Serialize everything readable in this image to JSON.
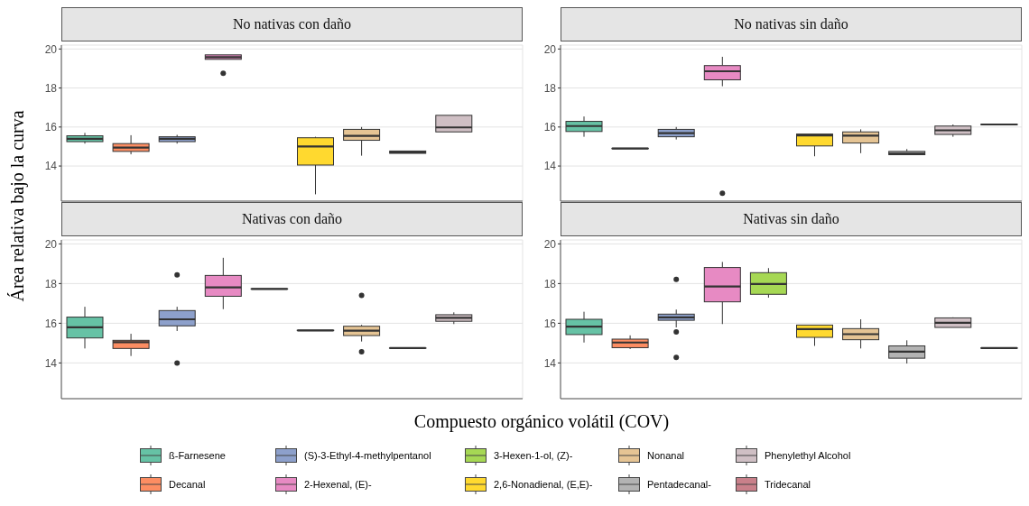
{
  "chart_data": [
    {
      "type": "box",
      "title": "No nativas con daño",
      "xlabel": "Compuesto orgánico volátil (COV)",
      "ylabel": "Área relativa bajo la curva",
      "legend": "bottom",
      "categories": [
        null,
        null,
        null,
        null,
        null,
        null,
        null,
        null,
        null,
        null
      ],
      "series": [
        {
          "name": "ß-Farnesene",
          "color": "#66c2a5",
          "boxes": [
            {
              "low": 15.15,
              "q1": 15.25,
              "median": 15.4,
              "q3": 15.55,
              "high": 15.7
            },
            null,
            null,
            null,
            null,
            null,
            null,
            null,
            null,
            null
          ]
        },
        {
          "name": "Decanal",
          "color": "#fc8d62",
          "boxes": [
            null,
            {
              "low": 14.6,
              "q1": 14.75,
              "median": 14.95,
              "q3": 15.15,
              "high": 15.58
            },
            null,
            null,
            null,
            null,
            null,
            null,
            null,
            null
          ]
        },
        {
          "name": "(S)-3-Ethyl-4-methylpentanol",
          "color": "#8da0cb",
          "boxes": [
            null,
            null,
            {
              "low": 15.15,
              "q1": 15.25,
              "median": 15.4,
              "q3": 15.5,
              "high": 15.6
            },
            null,
            null,
            null,
            null,
            null,
            null,
            null
          ]
        },
        {
          "name": "2-Hexenal, (E)-",
          "color": "#e78ac3",
          "boxes": [
            null,
            null,
            null,
            {
              "low": 19.47,
              "q1": 19.47,
              "median": 19.58,
              "q3": 19.7,
              "high": 19.7,
              "outliers": [
                18.75
              ]
            },
            null,
            null,
            null,
            null,
            null,
            null
          ]
        },
        {
          "name": "3-Hexen-1-ol, (Z)-",
          "color": "#a6d854",
          "boxes": [
            null,
            null,
            null,
            null,
            null,
            null,
            null,
            null,
            null,
            null
          ]
        },
        {
          "name": "2,6-Nonadienal, (E,E)-",
          "color": "#ffd92f",
          "boxes": [
            null,
            null,
            null,
            null,
            null,
            {
              "low": 12.55,
              "q1": 14.05,
              "median": 15.0,
              "q3": 15.45,
              "high": 15.5
            },
            null,
            null,
            null,
            null
          ]
        },
        {
          "name": "Nonanal",
          "color": "#e5c494",
          "boxes": [
            null,
            null,
            null,
            null,
            null,
            null,
            {
              "low": 14.53,
              "q1": 15.32,
              "median": 15.55,
              "q3": 15.88,
              "high": 16.0
            },
            null,
            null,
            null
          ]
        },
        {
          "name": "Pentadecanal-",
          "color": "#b3b3b3",
          "boxes": [
            null,
            null,
            null,
            null,
            null,
            null,
            null,
            {
              "low": 14.65,
              "q1": 14.65,
              "median": 14.7,
              "q3": 14.77,
              "high": 14.77
            },
            null,
            null
          ]
        },
        {
          "name": "Phenylethyl Alcohol",
          "color": "#cfbfc4",
          "boxes": [
            null,
            null,
            null,
            null,
            null,
            null,
            null,
            null,
            {
              "low": 15.75,
              "q1": 15.75,
              "median": 15.98,
              "q3": 16.6,
              "high": 16.6
            },
            null
          ]
        },
        {
          "name": "Tridecanal",
          "color": "#c9808a",
          "boxes": [
            null,
            null,
            null,
            null,
            null,
            null,
            null,
            null,
            null,
            null
          ]
        }
      ],
      "ylim": [
        12.2,
        20.2
      ],
      "yticks": [
        14,
        16,
        18,
        20
      ],
      "grid": true,
      "tick_labels": "y"
    },
    {
      "type": "box",
      "title": "No nativas sin daño",
      "categories": [
        null,
        null,
        null,
        null,
        null,
        null,
        null,
        null,
        null,
        null
      ],
      "series": [
        {
          "color": "#66c2a5",
          "boxes": [
            {
              "low": 15.5,
              "q1": 15.77,
              "median": 16.05,
              "q3": 16.29,
              "high": 16.54
            },
            null,
            null,
            null,
            null,
            null,
            null,
            null,
            null,
            null
          ]
        },
        {
          "color": "#fc8d62",
          "boxes": [
            null,
            {
              "low": 14.9,
              "q1": 14.9,
              "median": 14.9,
              "q3": 14.9,
              "high": 14.9
            },
            null,
            null,
            null,
            null,
            null,
            null,
            null,
            null
          ]
        },
        {
          "color": "#8da0cb",
          "boxes": [
            null,
            null,
            {
              "low": 15.36,
              "q1": 15.5,
              "median": 15.69,
              "q3": 15.88,
              "high": 16.0
            },
            null,
            null,
            null,
            null,
            null,
            null,
            null
          ]
        },
        {
          "color": "#e78ac3",
          "boxes": [
            null,
            null,
            null,
            {
              "low": 18.09,
              "q1": 18.42,
              "median": 18.86,
              "q3": 19.15,
              "high": 19.6,
              "outliers": [
                12.61
              ]
            },
            null,
            null,
            null,
            null,
            null,
            null
          ]
        },
        {
          "color": "#a6d854",
          "boxes": [
            null,
            null,
            null,
            null,
            null,
            null,
            null,
            null,
            null,
            null
          ]
        },
        {
          "color": "#ffd92f",
          "boxes": [
            null,
            null,
            null,
            null,
            null,
            {
              "low": 14.5,
              "q1": 15.03,
              "median": 15.57,
              "q3": 15.64,
              "high": 15.64
            },
            null,
            null,
            null,
            null
          ]
        },
        {
          "color": "#e5c494",
          "boxes": [
            null,
            null,
            null,
            null,
            null,
            null,
            {
              "low": 14.66,
              "q1": 15.18,
              "median": 15.56,
              "q3": 15.75,
              "high": 15.88
            },
            null,
            null,
            null
          ]
        },
        {
          "color": "#b3b3b3",
          "boxes": [
            null,
            null,
            null,
            null,
            null,
            null,
            null,
            {
              "low": 14.58,
              "q1": 14.58,
              "median": 14.64,
              "q3": 14.75,
              "high": 14.87
            },
            null,
            null
          ]
        },
        {
          "color": "#cfbfc4",
          "boxes": [
            null,
            null,
            null,
            null,
            null,
            null,
            null,
            null,
            {
              "low": 15.5,
              "q1": 15.62,
              "median": 15.83,
              "q3": 16.05,
              "high": 16.13
            },
            null
          ]
        },
        {
          "color": "#c9808a",
          "boxes": [
            null,
            null,
            null,
            null,
            null,
            null,
            null,
            null,
            null,
            {
              "low": 16.13,
              "q1": 16.13,
              "median": 16.13,
              "q3": 16.13,
              "high": 16.13
            }
          ]
        }
      ],
      "ylim": [
        12.2,
        20.2
      ],
      "yticks": [
        14,
        16,
        18,
        20
      ],
      "grid": true,
      "tick_labels": "y"
    },
    {
      "type": "box",
      "title": "Nativas con daño",
      "categories": [
        null,
        null,
        null,
        null,
        null,
        null,
        null,
        null,
        null,
        null
      ],
      "series": [
        {
          "color": "#66c2a5",
          "boxes": [
            {
              "low": 14.73,
              "q1": 15.26,
              "median": 15.8,
              "q3": 16.31,
              "high": 16.83
            },
            null,
            null,
            null,
            null,
            null,
            null,
            null,
            null,
            null
          ]
        },
        {
          "color": "#fc8d62",
          "boxes": [
            null,
            {
              "low": 14.35,
              "q1": 14.73,
              "median": 15.05,
              "q3": 15.14,
              "high": 15.47
            },
            null,
            null,
            null,
            null,
            null,
            null,
            null,
            null
          ]
        },
        {
          "color": "#8da0cb",
          "boxes": [
            null,
            null,
            {
              "low": 15.61,
              "q1": 15.87,
              "median": 16.2,
              "q3": 16.64,
              "high": 16.83,
              "outliers": [
                18.44,
                14.0
              ]
            },
            null,
            null,
            null,
            null,
            null,
            null,
            null
          ]
        },
        {
          "color": "#e78ac3",
          "boxes": [
            null,
            null,
            null,
            {
              "low": 16.71,
              "q1": 17.36,
              "median": 17.81,
              "q3": 18.41,
              "high": 19.3
            },
            null,
            null,
            null,
            null,
            null,
            null
          ]
        },
        {
          "color": "#a6d854",
          "boxes": [
            null,
            null,
            null,
            null,
            {
              "low": 17.73,
              "q1": 17.73,
              "median": 17.73,
              "q3": 17.73,
              "high": 17.73
            },
            null,
            null,
            null,
            null,
            null
          ]
        },
        {
          "color": "#ffd92f",
          "boxes": [
            null,
            null,
            null,
            null,
            null,
            {
              "low": 15.64,
              "q1": 15.64,
              "median": 15.64,
              "q3": 15.64,
              "high": 15.64
            },
            null,
            null,
            null,
            null
          ]
        },
        {
          "color": "#e5c494",
          "boxes": [
            null,
            null,
            null,
            null,
            null,
            null,
            {
              "low": 15.08,
              "q1": 15.38,
              "median": 15.63,
              "q3": 15.85,
              "high": 15.92,
              "outliers": [
                17.41,
                14.56
              ]
            },
            null,
            null,
            null
          ]
        },
        {
          "color": "#b3b3b3",
          "boxes": [
            null,
            null,
            null,
            null,
            null,
            null,
            null,
            {
              "low": 14.75,
              "q1": 14.75,
              "median": 14.75,
              "q3": 14.75,
              "high": 14.75
            },
            null,
            null
          ]
        },
        {
          "color": "#cfbfc4",
          "boxes": [
            null,
            null,
            null,
            null,
            null,
            null,
            null,
            null,
            {
              "low": 15.96,
              "q1": 16.1,
              "median": 16.27,
              "q3": 16.43,
              "high": 16.55
            },
            null
          ]
        },
        {
          "color": "#c9808a",
          "boxes": [
            null,
            null,
            null,
            null,
            null,
            null,
            null,
            null,
            null,
            null
          ]
        }
      ],
      "ylim": [
        12.2,
        20.2
      ],
      "yticks": [
        14,
        16,
        18,
        20
      ],
      "grid": true,
      "tick_labels": "y"
    },
    {
      "type": "box",
      "title": "Nativas sin daño",
      "categories": [
        null,
        null,
        null,
        null,
        null,
        null,
        null,
        null,
        null,
        null
      ],
      "series": [
        {
          "color": "#66c2a5",
          "boxes": [
            {
              "low": 15.03,
              "q1": 15.43,
              "median": 15.83,
              "q3": 16.2,
              "high": 16.58
            },
            null,
            null,
            null,
            null,
            null,
            null,
            null,
            null,
            null
          ]
        },
        {
          "color": "#fc8d62",
          "boxes": [
            null,
            {
              "low": 14.7,
              "q1": 14.77,
              "median": 15.03,
              "q3": 15.2,
              "high": 15.39
            },
            null,
            null,
            null,
            null,
            null,
            null,
            null,
            null
          ]
        },
        {
          "color": "#8da0cb",
          "boxes": [
            null,
            null,
            {
              "low": 15.79,
              "q1": 16.15,
              "median": 16.3,
              "q3": 16.46,
              "high": 16.69,
              "outliers": [
                18.21,
                15.56,
                14.28
              ]
            },
            null,
            null,
            null,
            null,
            null,
            null,
            null
          ]
        },
        {
          "color": "#e78ac3",
          "boxes": [
            null,
            null,
            null,
            {
              "low": 15.96,
              "q1": 17.08,
              "median": 17.85,
              "q3": 18.81,
              "high": 19.09
            },
            null,
            null,
            null,
            null,
            null,
            null
          ]
        },
        {
          "color": "#a6d854",
          "boxes": [
            null,
            null,
            null,
            null,
            {
              "low": 17.29,
              "q1": 17.46,
              "median": 17.98,
              "q3": 18.55,
              "high": 18.78
            },
            null,
            null,
            null,
            null,
            null
          ]
        },
        {
          "color": "#ffd92f",
          "boxes": [
            null,
            null,
            null,
            null,
            null,
            {
              "low": 14.86,
              "q1": 15.29,
              "median": 15.71,
              "q3": 15.91,
              "high": 15.91
            },
            null,
            null,
            null,
            null
          ]
        },
        {
          "color": "#e5c494",
          "boxes": [
            null,
            null,
            null,
            null,
            null,
            null,
            {
              "low": 14.73,
              "q1": 15.17,
              "median": 15.45,
              "q3": 15.73,
              "high": 16.2
            },
            null,
            null,
            null
          ]
        },
        {
          "color": "#b3b3b3",
          "boxes": [
            null,
            null,
            null,
            null,
            null,
            null,
            null,
            {
              "low": 13.97,
              "q1": 14.24,
              "median": 14.57,
              "q3": 14.86,
              "high": 15.14
            },
            null,
            null
          ]
        },
        {
          "color": "#cfbfc4",
          "boxes": [
            null,
            null,
            null,
            null,
            null,
            null,
            null,
            null,
            {
              "low": 15.79,
              "q1": 15.79,
              "median": 16.02,
              "q3": 16.27,
              "high": 16.3
            },
            null
          ]
        },
        {
          "color": "#c9808a",
          "boxes": [
            null,
            null,
            null,
            null,
            null,
            null,
            null,
            null,
            null,
            {
              "low": 14.75,
              "q1": 14.75,
              "median": 14.75,
              "q3": 14.75,
              "high": 14.75
            }
          ]
        }
      ],
      "ylim": [
        12.2,
        20.2
      ],
      "yticks": [
        14,
        16,
        18,
        20
      ],
      "grid": true,
      "tick_labels": "y"
    }
  ]
}
